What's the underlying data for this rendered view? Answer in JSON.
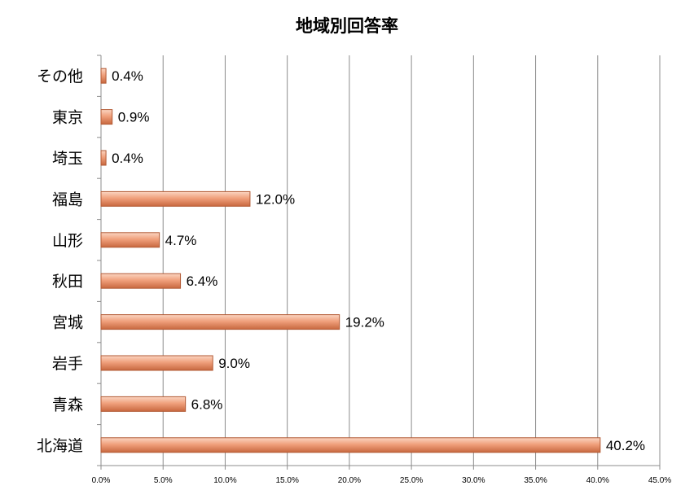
{
  "chart_data": {
    "type": "bar",
    "orientation": "horizontal",
    "title": "地域別回答率",
    "categories": [
      "北海道",
      "青森",
      "岩手",
      "宮城",
      "秋田",
      "山形",
      "福島",
      "埼玉",
      "東京",
      "その他"
    ],
    "values": [
      40.2,
      6.8,
      9.0,
      19.2,
      6.4,
      4.7,
      12.0,
      0.4,
      0.9,
      0.4
    ],
    "value_labels": [
      "40.2%",
      "6.8%",
      "9.0%",
      "19.2%",
      "6.4%",
      "4.7%",
      "12.0%",
      "0.4%",
      "0.9%",
      "0.4%"
    ],
    "x_ticks": [
      "0.0%",
      "5.0%",
      "10.0%",
      "15.0%",
      "20.0%",
      "25.0%",
      "30.0%",
      "35.0%",
      "40.0%",
      "45.0%"
    ],
    "xlim": [
      0,
      45
    ],
    "grid": true,
    "legend": "none",
    "bar_color": "#f0a07c"
  }
}
